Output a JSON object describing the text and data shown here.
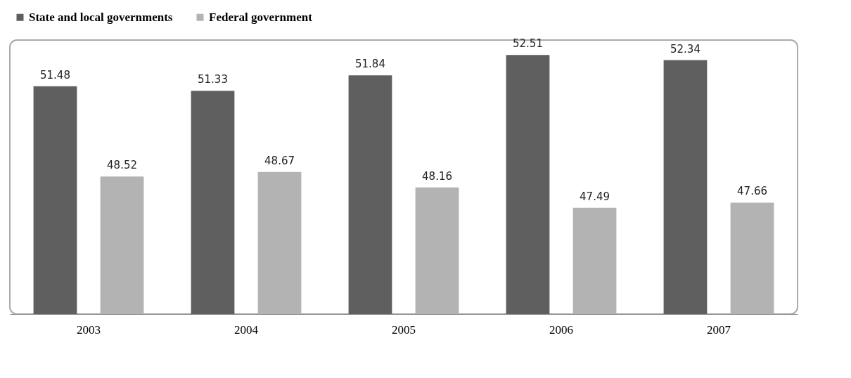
{
  "chart_data": {
    "type": "bar",
    "categories": [
      "2003",
      "2004",
      "2005",
      "2006",
      "2007"
    ],
    "series": [
      {
        "name": "State and local governments",
        "color": "#5f5f5f",
        "values": [
          51.48,
          51.33,
          51.84,
          52.51,
          52.34
        ]
      },
      {
        "name": "Federal government",
        "color": "#b3b3b3",
        "values": [
          48.52,
          48.67,
          48.16,
          47.49,
          47.66
        ]
      }
    ],
    "ylim": [
      44,
      53
    ],
    "tick_labels": "x",
    "data_labels": true,
    "legend": "top",
    "grid": false
  }
}
